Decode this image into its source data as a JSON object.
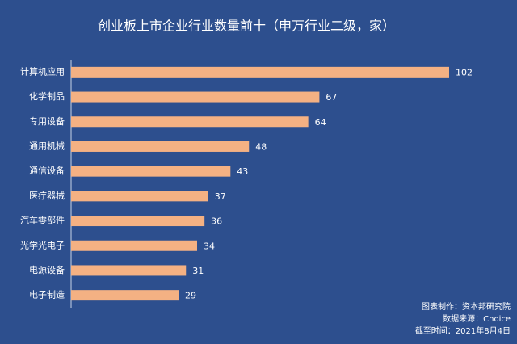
{
  "chart_data": {
    "type": "bar",
    "orientation": "horizontal",
    "title": "创业板上市企业行业数量前十（申万行业二级，家）",
    "categories": [
      "计算机应用",
      "化学制品",
      "专用设备",
      "通用机械",
      "通信设备",
      "医疗器械",
      "汽车零部件",
      "光学光电子",
      "电源设备",
      "电子制造"
    ],
    "values": [
      102,
      67,
      64,
      48,
      43,
      37,
      36,
      34,
      31,
      29
    ],
    "color": "#f4b183",
    "xlim": [
      0,
      102
    ],
    "notes": [
      "图表制作：资本邦研究院",
      "数据来源：Choice",
      "截至时间：2021年8月4日"
    ]
  }
}
